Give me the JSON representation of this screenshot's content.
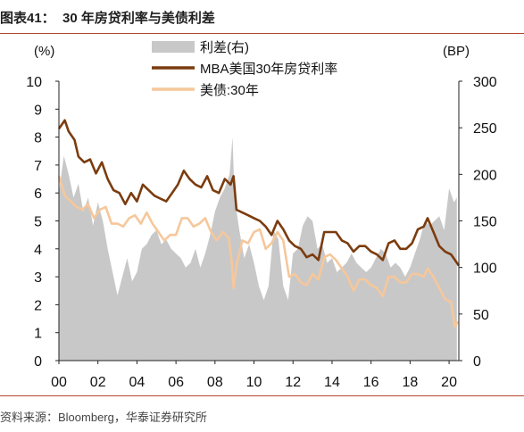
{
  "header": {
    "title": "图表41：  30 年房贷利率与美债利差"
  },
  "footer": {
    "source": "资料来源：Bloomberg，华泰证券研究所"
  },
  "chart_data": {
    "type": "line",
    "title": "30 年房贷利率与美债利差",
    "y_left_unit": "(%)",
    "y_right_unit": "(BP)",
    "y_left_range": [
      0,
      10
    ],
    "y_right_range": [
      0,
      300
    ],
    "y_left_ticks": [
      "0",
      "1",
      "2",
      "3",
      "4",
      "5",
      "6",
      "7",
      "8",
      "9",
      "10"
    ],
    "y_right_ticks": [
      "0",
      "50",
      "100",
      "150",
      "200",
      "250",
      "300"
    ],
    "x_range": [
      2000,
      2020.5
    ],
    "x_ticks": [
      {
        "value": 2000,
        "label": "00"
      },
      {
        "value": 2002,
        "label": "02"
      },
      {
        "value": 2004,
        "label": "04"
      },
      {
        "value": 2006,
        "label": "06"
      },
      {
        "value": 2008,
        "label": "08"
      },
      {
        "value": 2010,
        "label": "10"
      },
      {
        "value": 2012,
        "label": "12"
      },
      {
        "value": 2014,
        "label": "14"
      },
      {
        "value": 2016,
        "label": "16"
      },
      {
        "value": 2018,
        "label": "18"
      },
      {
        "value": 2020,
        "label": "20"
      }
    ],
    "legend_position": "top-center",
    "grid": false,
    "colors": {
      "spread": "#c8c8c8",
      "mortgage": "#7b3c0f",
      "treasury": "#f6c79b",
      "rule": "#b5472f"
    },
    "series": [
      {
        "name": "利差(右)",
        "kind": "area",
        "axis": "right",
        "x": [
          2000.0,
          2000.25,
          2000.5,
          2000.75,
          2001.0,
          2001.25,
          2001.5,
          2001.75,
          2002.0,
          2002.25,
          2002.5,
          2002.75,
          2003.0,
          2003.25,
          2003.5,
          2003.75,
          2004.0,
          2004.25,
          2004.5,
          2004.75,
          2005.0,
          2005.25,
          2005.5,
          2005.75,
          2006.0,
          2006.25,
          2006.5,
          2006.75,
          2007.0,
          2007.25,
          2007.5,
          2007.75,
          2008.0,
          2008.25,
          2008.5,
          2008.75,
          2008.9,
          2009.0,
          2009.25,
          2009.5,
          2009.75,
          2010.0,
          2010.25,
          2010.5,
          2010.75,
          2011.0,
          2011.25,
          2011.5,
          2011.75,
          2012.0,
          2012.25,
          2012.5,
          2012.75,
          2013.0,
          2013.25,
          2013.5,
          2013.75,
          2014.0,
          2014.25,
          2014.5,
          2014.75,
          2015.0,
          2015.25,
          2015.5,
          2015.75,
          2016.0,
          2016.25,
          2016.5,
          2016.75,
          2017.0,
          2017.25,
          2017.5,
          2017.75,
          2018.0,
          2018.25,
          2018.5,
          2018.75,
          2019.0,
          2019.25,
          2019.5,
          2019.75,
          2020.0,
          2020.25,
          2020.4
        ],
        "y": [
          180,
          220,
          200,
          175,
          190,
          160,
          175,
          145,
          170,
          150,
          120,
          95,
          70,
          90,
          110,
          85,
          95,
          120,
          125,
          135,
          140,
          125,
          130,
          120,
          115,
          110,
          100,
          105,
          120,
          100,
          115,
          135,
          160,
          175,
          185,
          200,
          240,
          175,
          140,
          110,
          125,
          105,
          80,
          65,
          80,
          140,
          130,
          80,
          65,
          115,
          120,
          145,
          155,
          150,
          120,
          125,
          105,
          110,
          95,
          100,
          105,
          115,
          105,
          100,
          95,
          100,
          110,
          120,
          115,
          100,
          105,
          100,
          90,
          100,
          115,
          130,
          150,
          145,
          150,
          155,
          140,
          185,
          170,
          175
        ]
      },
      {
        "name": "MBA美国30年房贷利率",
        "kind": "line",
        "axis": "left",
        "x": [
          2000.0,
          2000.3,
          2000.5,
          2000.8,
          2001.0,
          2001.3,
          2001.6,
          2001.9,
          2002.2,
          2002.5,
          2002.8,
          2003.1,
          2003.4,
          2003.7,
          2004.0,
          2004.3,
          2004.6,
          2004.9,
          2005.2,
          2005.5,
          2005.8,
          2006.1,
          2006.4,
          2006.7,
          2007.0,
          2007.3,
          2007.6,
          2007.9,
          2008.2,
          2008.5,
          2008.8,
          2008.95,
          2009.1,
          2009.4,
          2009.7,
          2010.0,
          2010.3,
          2010.6,
          2010.9,
          2011.2,
          2011.5,
          2011.8,
          2012.1,
          2012.4,
          2012.7,
          2013.0,
          2013.3,
          2013.6,
          2013.9,
          2014.2,
          2014.5,
          2014.8,
          2015.1,
          2015.4,
          2015.7,
          2016.0,
          2016.3,
          2016.6,
          2016.9,
          2017.2,
          2017.5,
          2017.8,
          2018.1,
          2018.4,
          2018.7,
          2018.9,
          2019.2,
          2019.5,
          2019.8,
          2020.1,
          2020.3,
          2020.5
        ],
        "y": [
          8.3,
          8.6,
          8.2,
          7.9,
          7.3,
          7.1,
          7.2,
          6.7,
          7.1,
          6.5,
          6.1,
          6.0,
          5.6,
          6.0,
          5.7,
          6.3,
          6.1,
          5.9,
          5.8,
          5.7,
          6.0,
          6.3,
          6.8,
          6.5,
          6.3,
          6.2,
          6.6,
          6.1,
          6.0,
          6.5,
          6.3,
          6.6,
          5.4,
          5.3,
          5.2,
          5.1,
          5.0,
          4.8,
          4.5,
          5.0,
          4.7,
          4.3,
          4.1,
          4.0,
          3.7,
          3.8,
          3.6,
          4.6,
          4.6,
          4.6,
          4.3,
          4.2,
          3.9,
          4.1,
          4.1,
          3.9,
          3.8,
          3.6,
          4.2,
          4.3,
          4.0,
          4.0,
          4.2,
          4.7,
          4.8,
          5.1,
          4.6,
          4.1,
          3.9,
          3.8,
          3.6,
          3.4
        ]
      },
      {
        "name": "美债:30年",
        "kind": "line",
        "axis": "left",
        "x": [
          2000.0,
          2000.3,
          2000.6,
          2000.9,
          2001.2,
          2001.5,
          2001.8,
          2002.1,
          2002.4,
          2002.7,
          2003.0,
          2003.3,
          2003.6,
          2003.9,
          2004.2,
          2004.5,
          2004.8,
          2005.1,
          2005.4,
          2005.7,
          2006.0,
          2006.3,
          2006.6,
          2006.9,
          2007.2,
          2007.5,
          2007.8,
          2008.1,
          2008.4,
          2008.7,
          2008.85,
          2008.95,
          2009.1,
          2009.4,
          2009.7,
          2010.0,
          2010.3,
          2010.6,
          2010.9,
          2011.2,
          2011.5,
          2011.8,
          2012.1,
          2012.4,
          2012.7,
          2013.0,
          2013.3,
          2013.6,
          2013.9,
          2014.2,
          2014.5,
          2014.8,
          2015.1,
          2015.4,
          2015.7,
          2016.0,
          2016.3,
          2016.6,
          2016.9,
          2017.2,
          2017.5,
          2017.8,
          2018.1,
          2018.4,
          2018.7,
          2018.9,
          2019.2,
          2019.5,
          2019.8,
          2020.1,
          2020.3,
          2020.45
        ],
        "y": [
          6.6,
          5.9,
          5.7,
          5.5,
          5.4,
          5.6,
          5.1,
          5.4,
          5.5,
          4.9,
          4.9,
          4.8,
          5.1,
          5.2,
          4.9,
          5.3,
          4.9,
          4.6,
          4.3,
          4.5,
          4.5,
          5.1,
          5.1,
          4.8,
          4.9,
          5.1,
          4.6,
          4.3,
          4.6,
          4.4,
          3.6,
          2.6,
          3.4,
          4.3,
          4.2,
          4.6,
          4.7,
          4.0,
          4.2,
          4.6,
          4.3,
          3.0,
          3.1,
          2.8,
          2.7,
          3.1,
          2.9,
          3.7,
          3.8,
          3.6,
          3.3,
          3.0,
          2.5,
          2.9,
          2.9,
          2.7,
          2.6,
          2.3,
          3.0,
          3.0,
          2.8,
          2.8,
          3.1,
          3.1,
          3.0,
          3.3,
          3.0,
          2.6,
          2.2,
          2.1,
          1.2,
          1.4
        ]
      }
    ]
  }
}
